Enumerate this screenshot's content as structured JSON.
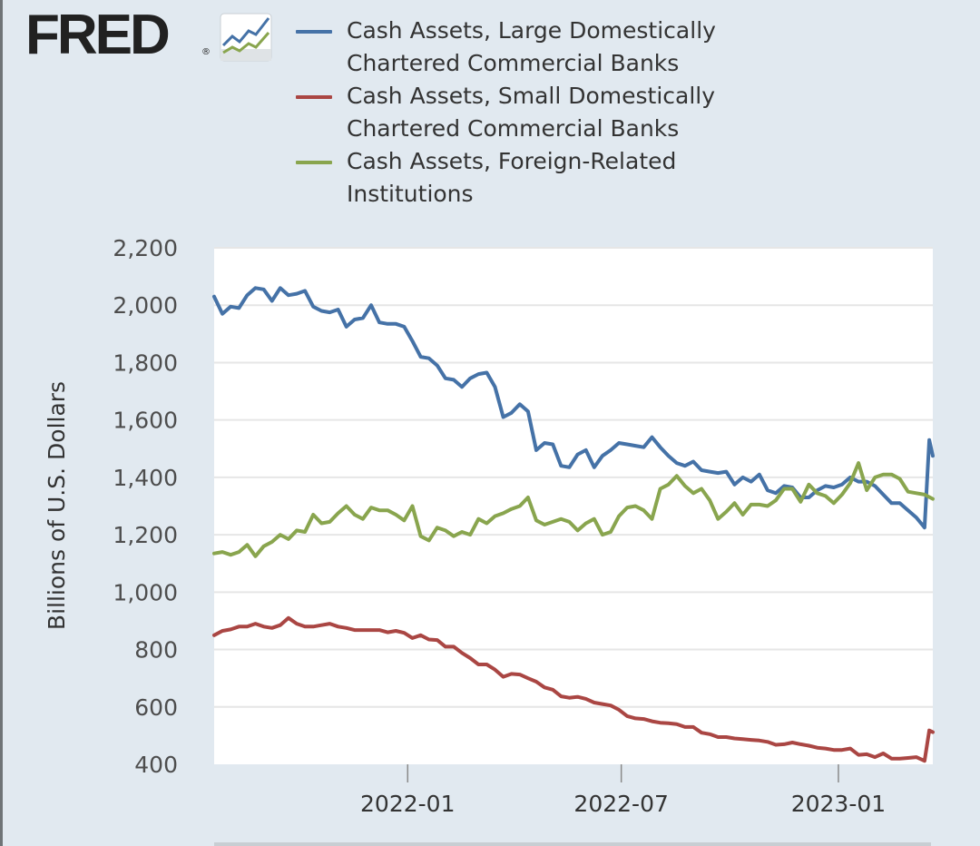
{
  "brand": {
    "logo_text": "FRED",
    "registered": "®"
  },
  "colors": {
    "background": "#e1e9f0",
    "plot_bg": "#ffffff",
    "grid": "#e6e6e6"
  },
  "chart_data": {
    "type": "line",
    "title": "",
    "ylabel": "Billions of U.S. Dollars",
    "xlabel": "",
    "ylim": [
      400,
      2200
    ],
    "yticks": [
      "2,200",
      "2,000",
      "1,800",
      "1,600",
      "1,400",
      "1,200",
      "1,000",
      "800",
      "600",
      "400"
    ],
    "ytick_values": [
      2200,
      2000,
      1800,
      1600,
      1400,
      1200,
      1000,
      800,
      600,
      400
    ],
    "xlim": [
      "2021-07-21",
      "2023-03-22"
    ],
    "xticks": [
      {
        "label": "2022-01",
        "date": "2022-01-01"
      },
      {
        "label": "2022-07",
        "date": "2022-07-01"
      },
      {
        "label": "2023-01",
        "date": "2023-01-01"
      }
    ],
    "grid": true,
    "legend_position": "top",
    "series": [
      {
        "name": "Cash Assets, Large Domestically Chartered Commercial Banks",
        "color": "#4572a7",
        "points": [
          [
            "2021-07-21",
            2030
          ],
          [
            "2021-07-28",
            1970
          ],
          [
            "2021-08-04",
            1995
          ],
          [
            "2021-08-11",
            1990
          ],
          [
            "2021-08-18",
            2035
          ],
          [
            "2021-08-25",
            2060
          ],
          [
            "2021-09-01",
            2055
          ],
          [
            "2021-09-08",
            2015
          ],
          [
            "2021-09-15",
            2060
          ],
          [
            "2021-09-22",
            2035
          ],
          [
            "2021-09-29",
            2040
          ],
          [
            "2021-10-06",
            2050
          ],
          [
            "2021-10-13",
            1995
          ],
          [
            "2021-10-20",
            1980
          ],
          [
            "2021-10-27",
            1975
          ],
          [
            "2021-11-03",
            1985
          ],
          [
            "2021-11-10",
            1925
          ],
          [
            "2021-11-17",
            1950
          ],
          [
            "2021-11-24",
            1955
          ],
          [
            "2021-12-01",
            2000
          ],
          [
            "2021-12-08",
            1940
          ],
          [
            "2021-12-15",
            1935
          ],
          [
            "2021-12-22",
            1935
          ],
          [
            "2021-12-29",
            1925
          ],
          [
            "2022-01-05",
            1875
          ],
          [
            "2022-01-12",
            1820
          ],
          [
            "2022-01-19",
            1815
          ],
          [
            "2022-01-26",
            1790
          ],
          [
            "2022-02-02",
            1745
          ],
          [
            "2022-02-09",
            1740
          ],
          [
            "2022-02-16",
            1715
          ],
          [
            "2022-02-23",
            1745
          ],
          [
            "2022-03-02",
            1760
          ],
          [
            "2022-03-09",
            1765
          ],
          [
            "2022-03-16",
            1715
          ],
          [
            "2022-03-23",
            1610
          ],
          [
            "2022-03-30",
            1625
          ],
          [
            "2022-04-06",
            1655
          ],
          [
            "2022-04-13",
            1630
          ],
          [
            "2022-04-20",
            1495
          ],
          [
            "2022-04-27",
            1520
          ],
          [
            "2022-05-04",
            1515
          ],
          [
            "2022-05-11",
            1440
          ],
          [
            "2022-05-18",
            1435
          ],
          [
            "2022-05-25",
            1480
          ],
          [
            "2022-06-01",
            1495
          ],
          [
            "2022-06-08",
            1435
          ],
          [
            "2022-06-15",
            1475
          ],
          [
            "2022-06-22",
            1495
          ],
          [
            "2022-06-29",
            1520
          ],
          [
            "2022-07-06",
            1515
          ],
          [
            "2022-07-13",
            1510
          ],
          [
            "2022-07-20",
            1505
          ],
          [
            "2022-07-27",
            1540
          ],
          [
            "2022-08-03",
            1505
          ],
          [
            "2022-08-10",
            1475
          ],
          [
            "2022-08-17",
            1450
          ],
          [
            "2022-08-24",
            1440
          ],
          [
            "2022-08-31",
            1455
          ],
          [
            "2022-09-07",
            1425
          ],
          [
            "2022-09-14",
            1420
          ],
          [
            "2022-09-21",
            1415
          ],
          [
            "2022-09-28",
            1420
          ],
          [
            "2022-10-05",
            1375
          ],
          [
            "2022-10-12",
            1400
          ],
          [
            "2022-10-19",
            1385
          ],
          [
            "2022-10-26",
            1410
          ],
          [
            "2022-11-02",
            1355
          ],
          [
            "2022-11-09",
            1345
          ],
          [
            "2022-11-16",
            1370
          ],
          [
            "2022-11-23",
            1365
          ],
          [
            "2022-11-30",
            1330
          ],
          [
            "2022-12-07",
            1330
          ],
          [
            "2022-12-14",
            1355
          ],
          [
            "2022-12-21",
            1370
          ],
          [
            "2022-12-28",
            1365
          ],
          [
            "2023-01-04",
            1375
          ],
          [
            "2023-01-11",
            1400
          ],
          [
            "2023-01-18",
            1385
          ],
          [
            "2023-01-25",
            1385
          ],
          [
            "2023-02-01",
            1370
          ],
          [
            "2023-02-08",
            1340
          ],
          [
            "2023-02-15",
            1310
          ],
          [
            "2023-02-22",
            1310
          ],
          [
            "2023-03-01",
            1285
          ],
          [
            "2023-03-08",
            1260
          ],
          [
            "2023-03-15",
            1225
          ],
          [
            "2023-03-19",
            1530
          ],
          [
            "2023-03-22",
            1475
          ]
        ]
      },
      {
        "name": "Cash Assets, Small Domestically Chartered Commercial Banks",
        "color": "#aa4643",
        "points": [
          [
            "2021-07-21",
            850
          ],
          [
            "2021-07-28",
            865
          ],
          [
            "2021-08-04",
            870
          ],
          [
            "2021-08-11",
            880
          ],
          [
            "2021-08-18",
            880
          ],
          [
            "2021-08-25",
            890
          ],
          [
            "2021-09-01",
            880
          ],
          [
            "2021-09-08",
            875
          ],
          [
            "2021-09-15",
            885
          ],
          [
            "2021-09-22",
            910
          ],
          [
            "2021-09-29",
            890
          ],
          [
            "2021-10-06",
            880
          ],
          [
            "2021-10-13",
            880
          ],
          [
            "2021-10-20",
            885
          ],
          [
            "2021-10-27",
            890
          ],
          [
            "2021-11-03",
            880
          ],
          [
            "2021-11-10",
            875
          ],
          [
            "2021-11-17",
            868
          ],
          [
            "2021-11-24",
            868
          ],
          [
            "2021-12-01",
            868
          ],
          [
            "2021-12-08",
            868
          ],
          [
            "2021-12-15",
            860
          ],
          [
            "2021-12-22",
            865
          ],
          [
            "2021-12-29",
            858
          ],
          [
            "2022-01-05",
            840
          ],
          [
            "2022-01-12",
            850
          ],
          [
            "2022-01-19",
            835
          ],
          [
            "2022-01-26",
            833
          ],
          [
            "2022-02-02",
            810
          ],
          [
            "2022-02-09",
            810
          ],
          [
            "2022-02-16",
            788
          ],
          [
            "2022-02-23",
            770
          ],
          [
            "2022-03-02",
            748
          ],
          [
            "2022-03-09",
            748
          ],
          [
            "2022-03-16",
            730
          ],
          [
            "2022-03-23",
            705
          ],
          [
            "2022-03-30",
            715
          ],
          [
            "2022-04-06",
            713
          ],
          [
            "2022-04-13",
            700
          ],
          [
            "2022-04-20",
            688
          ],
          [
            "2022-04-27",
            668
          ],
          [
            "2022-05-04",
            660
          ],
          [
            "2022-05-11",
            637
          ],
          [
            "2022-05-18",
            632
          ],
          [
            "2022-05-25",
            635
          ],
          [
            "2022-06-01",
            628
          ],
          [
            "2022-06-08",
            615
          ],
          [
            "2022-06-15",
            610
          ],
          [
            "2022-06-22",
            605
          ],
          [
            "2022-06-29",
            590
          ],
          [
            "2022-07-06",
            568
          ],
          [
            "2022-07-13",
            560
          ],
          [
            "2022-07-20",
            558
          ],
          [
            "2022-07-27",
            550
          ],
          [
            "2022-08-03",
            545
          ],
          [
            "2022-08-10",
            543
          ],
          [
            "2022-08-17",
            540
          ],
          [
            "2022-08-24",
            530
          ],
          [
            "2022-08-31",
            530
          ],
          [
            "2022-09-07",
            510
          ],
          [
            "2022-09-14",
            505
          ],
          [
            "2022-09-21",
            495
          ],
          [
            "2022-09-28",
            495
          ],
          [
            "2022-10-05",
            490
          ],
          [
            "2022-10-12",
            488
          ],
          [
            "2022-10-19",
            485
          ],
          [
            "2022-10-26",
            483
          ],
          [
            "2022-11-02",
            478
          ],
          [
            "2022-11-09",
            468
          ],
          [
            "2022-11-16",
            470
          ],
          [
            "2022-11-23",
            476
          ],
          [
            "2022-11-30",
            470
          ],
          [
            "2022-12-07",
            465
          ],
          [
            "2022-12-14",
            458
          ],
          [
            "2022-12-21",
            455
          ],
          [
            "2022-12-28",
            450
          ],
          [
            "2023-01-04",
            450
          ],
          [
            "2023-01-11",
            455
          ],
          [
            "2023-01-18",
            433
          ],
          [
            "2023-01-25",
            435
          ],
          [
            "2023-02-01",
            425
          ],
          [
            "2023-02-08",
            438
          ],
          [
            "2023-02-15",
            420
          ],
          [
            "2023-02-22",
            420
          ],
          [
            "2023-03-01",
            422
          ],
          [
            "2023-03-08",
            425
          ],
          [
            "2023-03-15",
            412
          ],
          [
            "2023-03-19",
            518
          ],
          [
            "2023-03-22",
            512
          ]
        ]
      },
      {
        "name": "Cash Assets, Foreign-Related Institutions",
        "color": "#89a54e",
        "points": [
          [
            "2021-07-21",
            1135
          ],
          [
            "2021-07-28",
            1140
          ],
          [
            "2021-08-04",
            1130
          ],
          [
            "2021-08-11",
            1140
          ],
          [
            "2021-08-18",
            1165
          ],
          [
            "2021-08-25",
            1125
          ],
          [
            "2021-09-01",
            1160
          ],
          [
            "2021-09-08",
            1175
          ],
          [
            "2021-09-15",
            1200
          ],
          [
            "2021-09-22",
            1185
          ],
          [
            "2021-09-29",
            1215
          ],
          [
            "2021-10-06",
            1210
          ],
          [
            "2021-10-13",
            1270
          ],
          [
            "2021-10-20",
            1240
          ],
          [
            "2021-10-27",
            1245
          ],
          [
            "2021-11-03",
            1275
          ],
          [
            "2021-11-10",
            1300
          ],
          [
            "2021-11-17",
            1270
          ],
          [
            "2021-11-24",
            1255
          ],
          [
            "2021-12-01",
            1295
          ],
          [
            "2021-12-08",
            1285
          ],
          [
            "2021-12-15",
            1285
          ],
          [
            "2021-12-22",
            1270
          ],
          [
            "2021-12-29",
            1250
          ],
          [
            "2022-01-05",
            1300
          ],
          [
            "2022-01-12",
            1195
          ],
          [
            "2022-01-19",
            1180
          ],
          [
            "2022-01-26",
            1225
          ],
          [
            "2022-02-02",
            1215
          ],
          [
            "2022-02-09",
            1195
          ],
          [
            "2022-02-16",
            1210
          ],
          [
            "2022-02-23",
            1200
          ],
          [
            "2022-03-02",
            1255
          ],
          [
            "2022-03-09",
            1240
          ],
          [
            "2022-03-16",
            1265
          ],
          [
            "2022-03-23",
            1275
          ],
          [
            "2022-03-30",
            1290
          ],
          [
            "2022-04-06",
            1300
          ],
          [
            "2022-04-13",
            1330
          ],
          [
            "2022-04-20",
            1250
          ],
          [
            "2022-04-27",
            1235
          ],
          [
            "2022-05-04",
            1245
          ],
          [
            "2022-05-11",
            1255
          ],
          [
            "2022-05-18",
            1245
          ],
          [
            "2022-05-25",
            1215
          ],
          [
            "2022-06-01",
            1240
          ],
          [
            "2022-06-08",
            1255
          ],
          [
            "2022-06-15",
            1200
          ],
          [
            "2022-06-22",
            1210
          ],
          [
            "2022-06-29",
            1265
          ],
          [
            "2022-07-06",
            1295
          ],
          [
            "2022-07-13",
            1300
          ],
          [
            "2022-07-20",
            1285
          ],
          [
            "2022-07-27",
            1255
          ],
          [
            "2022-08-03",
            1360
          ],
          [
            "2022-08-10",
            1375
          ],
          [
            "2022-08-17",
            1405
          ],
          [
            "2022-08-24",
            1370
          ],
          [
            "2022-08-31",
            1345
          ],
          [
            "2022-09-07",
            1360
          ],
          [
            "2022-09-14",
            1320
          ],
          [
            "2022-09-21",
            1255
          ],
          [
            "2022-09-28",
            1280
          ],
          [
            "2022-10-05",
            1310
          ],
          [
            "2022-10-12",
            1270
          ],
          [
            "2022-10-19",
            1305
          ],
          [
            "2022-10-26",
            1305
          ],
          [
            "2022-11-02",
            1300
          ],
          [
            "2022-11-09",
            1320
          ],
          [
            "2022-11-16",
            1360
          ],
          [
            "2022-11-23",
            1360
          ],
          [
            "2022-11-30",
            1315
          ],
          [
            "2022-12-07",
            1375
          ],
          [
            "2022-12-14",
            1345
          ],
          [
            "2022-12-21",
            1335
          ],
          [
            "2022-12-28",
            1310
          ],
          [
            "2023-01-04",
            1340
          ],
          [
            "2023-01-11",
            1380
          ],
          [
            "2023-01-18",
            1450
          ],
          [
            "2023-01-25",
            1355
          ],
          [
            "2023-02-01",
            1400
          ],
          [
            "2023-02-08",
            1410
          ],
          [
            "2023-02-15",
            1410
          ],
          [
            "2023-02-22",
            1395
          ],
          [
            "2023-03-01",
            1350
          ],
          [
            "2023-03-08",
            1345
          ],
          [
            "2023-03-15",
            1340
          ],
          [
            "2023-03-22",
            1325
          ]
        ]
      }
    ]
  }
}
